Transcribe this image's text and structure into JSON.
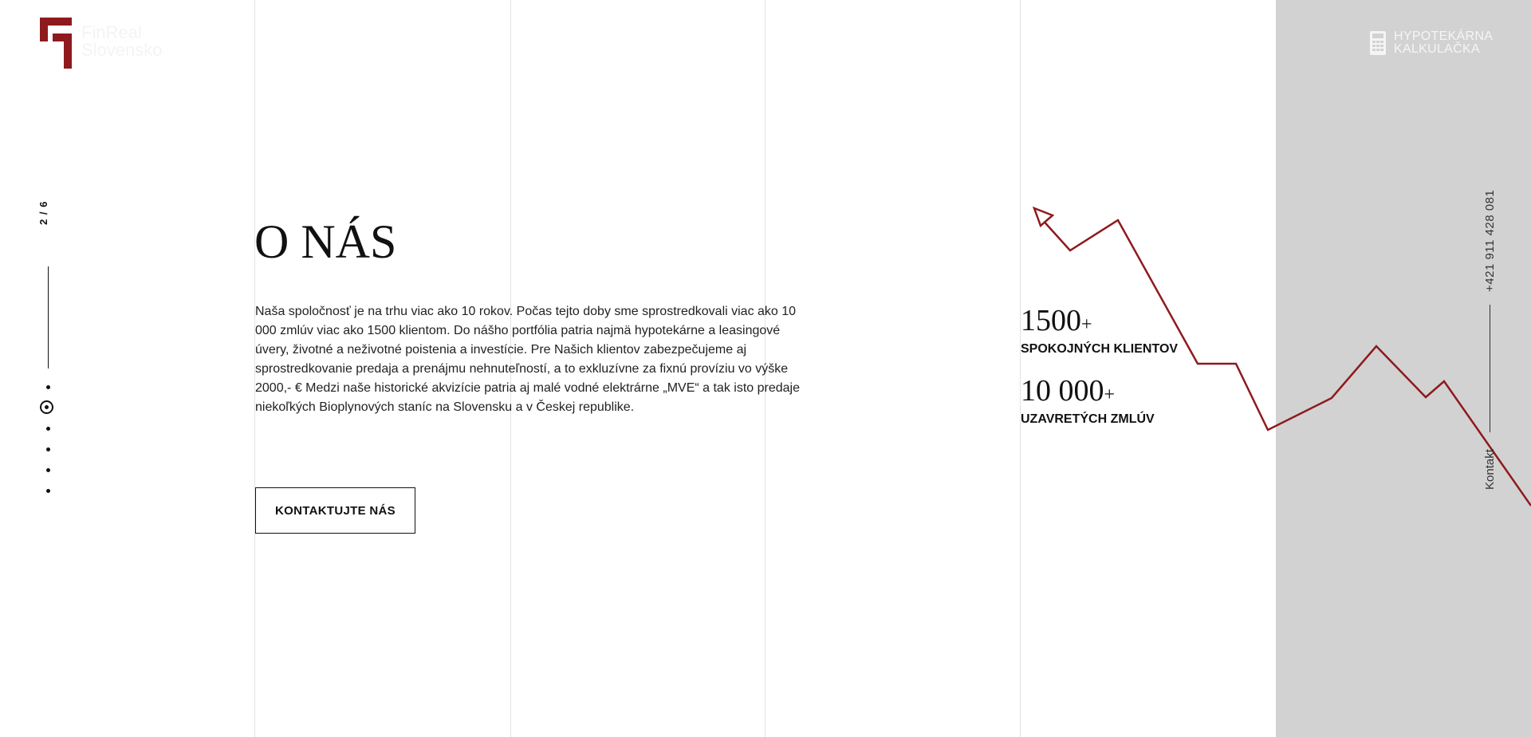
{
  "brand": {
    "name_line1": "FinReal",
    "name_line2": "Slovensko",
    "color": "#8e1a1d"
  },
  "pager": {
    "indicator": "2 / 6",
    "total_dots": 6,
    "active_index": 2
  },
  "about": {
    "title": "O NÁS",
    "description": "Naša spoločnosť je na trhu viac ako 10 rokov. Počas tejto doby sme sprostredkovali viac ako 10 000 zmlúv viac ako 1500 klientom. Do nášho portfólia patria najmä hypotekárne a leasingové úvery, životné a neživotné poistenia a investície. Pre Našich klientov zabezpečujeme aj sprostredkovanie predaja a prenájmu nehnuteľností, a to exkluzívne za fixnú províziu vo výške 2000,- € Medzi naše historické akvizície patria aj malé vodné elektrárne „MVE“ a tak isto predaje niekoľkých Bioplynových staníc na Slovensku a v Českej republike.",
    "cta_label": "KONTAKTUJTE NÁS"
  },
  "stats": [
    {
      "value": "1500",
      "suffix": "+",
      "label": "SPOKOJNÝCH KLIENTOV"
    },
    {
      "value": "10 000",
      "suffix": "+",
      "label": "UZAVRETÝCH ZMLÚV"
    }
  ],
  "calculator": {
    "line1": "HYPOTEKÁRNA",
    "line2": "KALKULAČKA",
    "icon": "calculator-icon"
  },
  "contact": {
    "phone": "+421 911 428 081",
    "label": "Kontakt"
  },
  "colors": {
    "accent": "#8e1a1d",
    "panel": "#d2d2d2",
    "grid": "#e3e3e3"
  }
}
